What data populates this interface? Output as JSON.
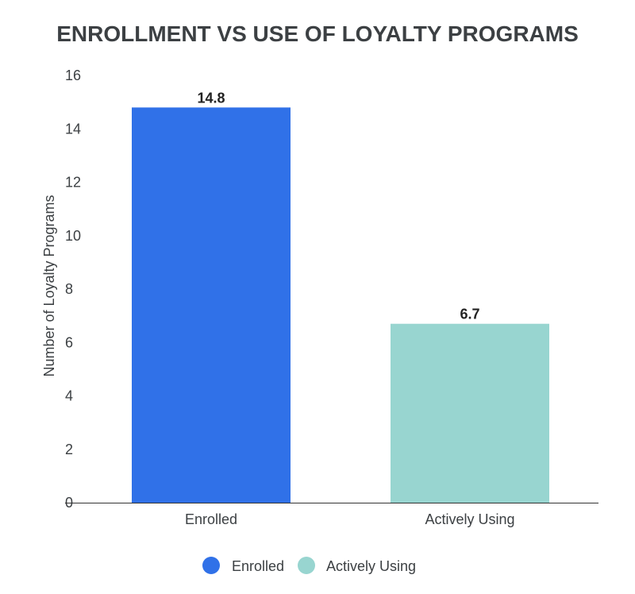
{
  "chart_data": {
    "type": "bar",
    "title": "ENROLLMENT VS USE OF LOYALTY PROGRAMS",
    "xlabel": "",
    "ylabel": "Number of Loyalty Programs",
    "categories": [
      "Enrolled",
      "Actively Using"
    ],
    "values": [
      14.8,
      6.7
    ],
    "data_labels": [
      "14.8",
      "6.7"
    ],
    "colors": [
      "#3071e8",
      "#98d5d0"
    ],
    "ylim": [
      0,
      16
    ],
    "yticks": [
      0,
      2,
      4,
      6,
      8,
      10,
      12,
      14,
      16
    ],
    "grid": false,
    "legend": {
      "position": "bottom",
      "entries": [
        {
          "label": "Enrolled",
          "color": "#3071e8"
        },
        {
          "label": "Actively Using",
          "color": "#98d5d0"
        }
      ]
    }
  }
}
